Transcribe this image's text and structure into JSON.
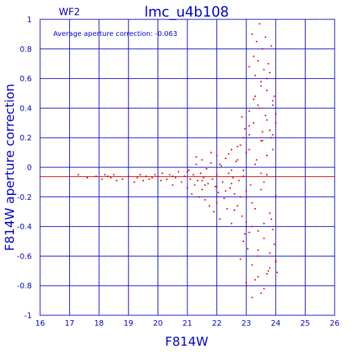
{
  "chart_data": {
    "type": "scatter",
    "title": "lmc_u4b108",
    "chip_label": "WF2",
    "annotation": "Average aperture correction:  -0.063",
    "xlabel": "F814W",
    "ylabel": "F814W aperture correction",
    "xlim": [
      16,
      26
    ],
    "ylim": [
      -1,
      1
    ],
    "xticks": [
      "16",
      "17",
      "18",
      "19",
      "20",
      "21",
      "22",
      "23",
      "24",
      "25",
      "26"
    ],
    "yticks": [
      "-1",
      "-0.8",
      "-0.6",
      "-0.4",
      "-0.2",
      "0",
      "0.2",
      "0.4",
      "0.6",
      "0.8",
      "1"
    ],
    "grid": true,
    "average_line": -0.063,
    "colors": {
      "axes": "#0000cc",
      "points": "#dd0000",
      "average_line": "#dd0000"
    },
    "series": [
      {
        "x": [
          17.3,
          17.6,
          17.9,
          18.1,
          18.2,
          18.3,
          18.4,
          18.5,
          18.6,
          18.8,
          19.0,
          19.2,
          19.3,
          19.4,
          19.5,
          19.6,
          19.7,
          19.8,
          19.9,
          20.0,
          20.1,
          20.15,
          20.3,
          20.4,
          20.5,
          20.6,
          20.7,
          20.8,
          20.9,
          21.0,
          21.05,
          21.1,
          21.15,
          21.2,
          21.25,
          21.3,
          21.35,
          21.4,
          21.45,
          21.5,
          21.5,
          21.55,
          21.6,
          21.65,
          21.7,
          21.75,
          21.8,
          21.85,
          21.9,
          21.95,
          22.0,
          22.0,
          22.05,
          22.1,
          22.15,
          22.2,
          22.25,
          22.3,
          22.35,
          22.4,
          22.45,
          22.5,
          22.5,
          22.55,
          22.6,
          22.65,
          22.7,
          22.75,
          22.8,
          22.85,
          22.9,
          22.95,
          23.0,
          23.0,
          23.05,
          23.1,
          23.15,
          23.2,
          23.25,
          23.3,
          23.35,
          23.4,
          23.45,
          23.5,
          23.55,
          23.6,
          23.65,
          23.7,
          23.75,
          23.8,
          23.85,
          23.9,
          23.95,
          24.0,
          21.3,
          21.6,
          21.8,
          22.0,
          22.1,
          22.3,
          22.4,
          22.6,
          22.7,
          22.8,
          22.9,
          23.0,
          23.1,
          23.2,
          23.3,
          23.4,
          23.5,
          23.6,
          23.7,
          23.8,
          23.9,
          24.0,
          23.1,
          23.2,
          23.25,
          23.3,
          23.35,
          23.4,
          23.45,
          23.5,
          23.55,
          23.6,
          23.65,
          23.7,
          23.75,
          23.8,
          23.85,
          23.9,
          23.95,
          24.05,
          22.8,
          22.9,
          23.0,
          23.1,
          23.2,
          23.3,
          23.4,
          23.5,
          23.6,
          23.7,
          23.8,
          23.9,
          24.0,
          22.85,
          22.95,
          23.1,
          23.25,
          23.4,
          23.55,
          23.7,
          23.85,
          24.0,
          22.5,
          22.7,
          22.9,
          23.1,
          23.3,
          23.5,
          23.7,
          23.9,
          23.0,
          23.2,
          23.4,
          23.6,
          23.8,
          20.5,
          21.0,
          21.5,
          22.0,
          22.5,
          23.0,
          23.5,
          24.0
        ],
        "y": [
          -0.05,
          -0.07,
          -0.06,
          -0.08,
          -0.05,
          -0.06,
          -0.07,
          -0.05,
          -0.09,
          -0.08,
          -0.06,
          -0.1,
          -0.07,
          -0.05,
          -0.09,
          -0.06,
          -0.08,
          -0.07,
          -0.05,
          -0.06,
          -0.09,
          -0.04,
          -0.08,
          -0.05,
          -0.12,
          -0.07,
          -0.03,
          -0.1,
          -0.06,
          -0.14,
          -0.02,
          -0.08,
          -0.18,
          -0.05,
          -0.12,
          0.02,
          -0.09,
          -0.2,
          -0.04,
          -0.15,
          0.05,
          -0.07,
          -0.22,
          -0.01,
          -0.11,
          -0.26,
          0.03,
          -0.08,
          -0.3,
          -0.13,
          0.08,
          -0.05,
          -0.17,
          -0.35,
          0.01,
          -0.1,
          -0.21,
          0.06,
          -0.28,
          -0.04,
          -0.14,
          0.12,
          -0.38,
          -0.07,
          -0.18,
          0.04,
          -0.26,
          -0.09,
          0.15,
          -0.33,
          -0.02,
          -0.45,
          0.1,
          -0.2,
          -0.55,
          0.22,
          -0.12,
          -0.4,
          0.3,
          -0.28,
          0.05,
          -0.6,
          0.4,
          -0.15,
          0.18,
          -0.48,
          0.35,
          -0.05,
          -0.7,
          0.25,
          -0.35,
          0.12,
          -0.52,
          0.3,
          0.07,
          -0.12,
          0.1,
          -0.24,
          0.02,
          -0.16,
          0.09,
          -0.29,
          0.05,
          -0.2,
          0.2,
          -0.37,
          0.28,
          -0.24,
          0.48,
          -0.43,
          0.55,
          -0.1,
          0.6,
          -0.31,
          0.45,
          -0.64,
          0.68,
          0.9,
          0.75,
          0.62,
          0.85,
          0.72,
          0.97,
          0.58,
          0.8,
          0.66,
          0.88,
          0.52,
          0.7,
          0.64,
          0.82,
          0.42,
          0.48,
          -0.71,
          -0.62,
          -0.5,
          -0.8,
          -0.44,
          -0.66,
          -0.76,
          -0.56,
          -0.85,
          -0.38,
          -0.72,
          -0.58,
          -0.42,
          -0.63,
          0.34,
          0.26,
          0.38,
          0.46,
          0.42,
          0.24,
          0.32,
          0.2,
          0.36,
          -0.02,
          0.14,
          -0.06,
          0.12,
          0.02,
          0.18,
          0.08,
          0.22,
          -0.78,
          -0.88,
          -0.74,
          -0.82,
          -0.68,
          -0.06,
          -0.03,
          -0.09,
          -0.13,
          -0.11,
          -0.16,
          -0.04,
          -0.19
        ]
      }
    ]
  }
}
